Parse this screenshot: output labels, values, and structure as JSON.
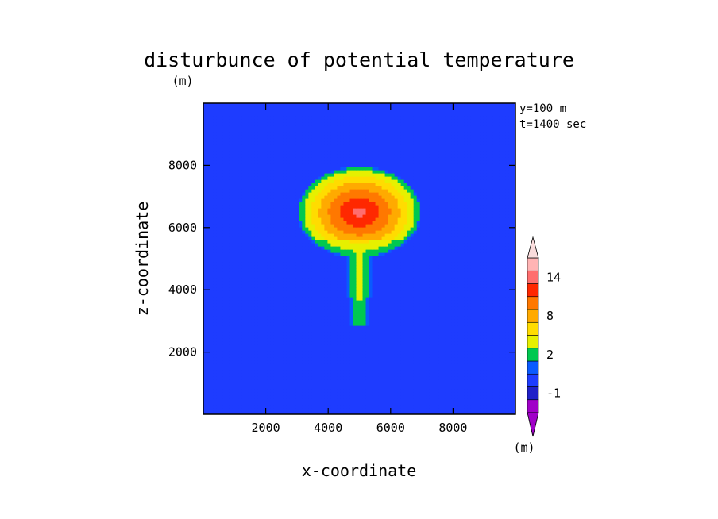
{
  "chart_data": {
    "type": "heatmap",
    "title": "disturbunce of potential temperature",
    "title_unit": "(m)",
    "xlabel": "x-coordinate",
    "ylabel": "z-coordinate",
    "xlim": [
      0,
      10000
    ],
    "ylim": [
      0,
      10000
    ],
    "x_ticks": [
      2000,
      4000,
      6000,
      8000
    ],
    "y_ticks": [
      2000,
      4000,
      6000,
      8000
    ],
    "annotations": [
      "y=100 m",
      "t=1400 sec"
    ],
    "colorbar": {
      "unit_label": "(m)",
      "levels": [
        -2,
        -1,
        0,
        1,
        2,
        4,
        6,
        8,
        10,
        12,
        14,
        16
      ],
      "tick_labels": [
        "-1",
        "2",
        "8",
        "14"
      ],
      "tick_values": [
        -1,
        2,
        8,
        14
      ],
      "colors": [
        "#a000c8",
        "#2020c8",
        "#1e3cff",
        "#0a5aff",
        "#00c850",
        "#e6f000",
        "#ffdc00",
        "#ffaa00",
        "#ff7800",
        "#ff2800",
        "#ff6e6e",
        "#ffb4b4"
      ],
      "extend": "both",
      "under_color": "#a000c8",
      "over_color": "#fadcdc"
    },
    "field_description_values": {
      "background": -0.5,
      "bubble_max": 15,
      "bubble_center_x": 5000,
      "bubble_center_z": 6500,
      "stem_bottom_z": 2900
    }
  }
}
